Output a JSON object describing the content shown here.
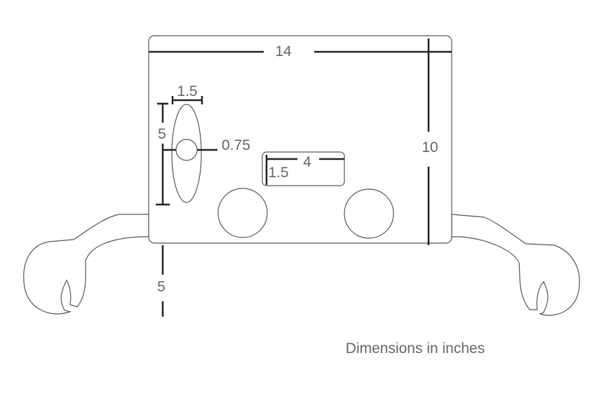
{
  "diagram": {
    "dimensions": {
      "body_width": "14",
      "body_height": "10",
      "ellipse_width": "1.5",
      "ellipse_height": "5",
      "hole_diameter": "0.75",
      "slot_width": "4",
      "slot_height": "1.5",
      "arm_offset": "5"
    },
    "note": "Dimensions in inches"
  }
}
